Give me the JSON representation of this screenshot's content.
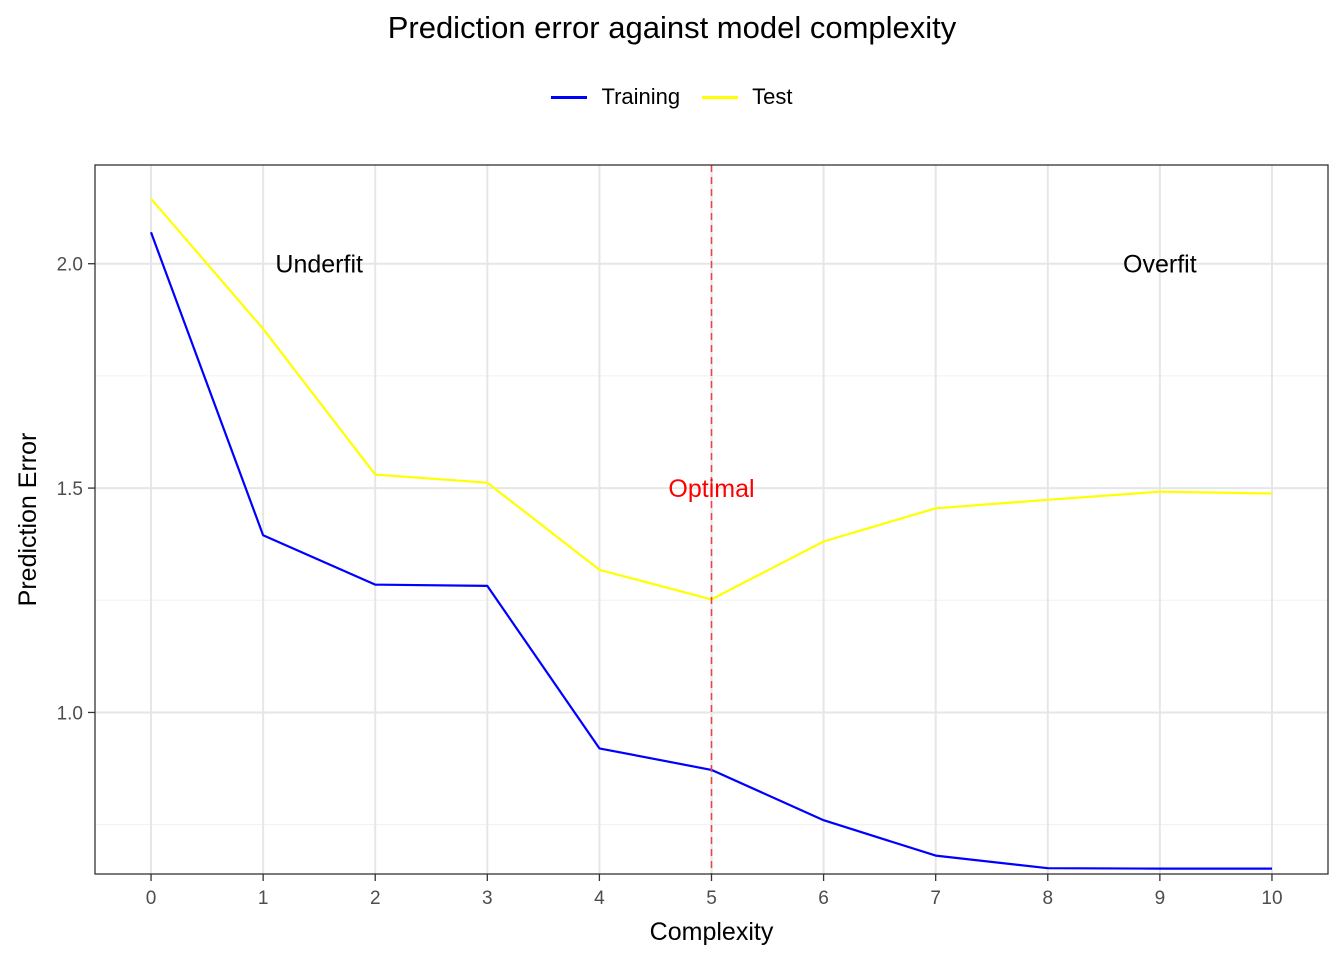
{
  "chart_data": {
    "type": "line",
    "title": "Prediction error against model complexity",
    "xlabel": "Complexity",
    "ylabel": "Prediction Error",
    "x": [
      0,
      1,
      2,
      3,
      4,
      5,
      6,
      7,
      8,
      9,
      10
    ],
    "xlim": [
      -0.5,
      10.5
    ],
    "ylim": [
      0.64,
      2.22
    ],
    "x_ticks": [
      "0",
      "1",
      "2",
      "3",
      "4",
      "5",
      "6",
      "7",
      "8",
      "9",
      "10"
    ],
    "y_ticks": [
      "1.0",
      "1.5",
      "2.0"
    ],
    "y_tick_values": [
      1.0,
      1.5,
      2.0
    ],
    "grid": true,
    "legend_position": "top",
    "series": [
      {
        "name": "Training",
        "color": "#0000ff",
        "values": [
          2.07,
          1.395,
          1.285,
          1.282,
          0.92,
          0.872,
          0.76,
          0.681,
          0.653,
          0.652,
          0.652
        ]
      },
      {
        "name": "Test",
        "color": "#ffff00",
        "values": [
          2.145,
          1.855,
          1.53,
          1.512,
          1.318,
          1.252,
          1.381,
          1.455,
          1.474,
          1.492,
          1.488
        ]
      }
    ],
    "vline": {
      "x": 5,
      "color": "#e4474b",
      "style": "dashed"
    },
    "annotations": [
      {
        "text": "Underfit",
        "x": 1.5,
        "y": 2.0,
        "color": "#000000"
      },
      {
        "text": "Optimal",
        "x": 5.0,
        "y": 1.5,
        "color": "#ff0000"
      },
      {
        "text": "Overfit",
        "x": 9.0,
        "y": 2.0,
        "color": "#000000"
      }
    ]
  }
}
